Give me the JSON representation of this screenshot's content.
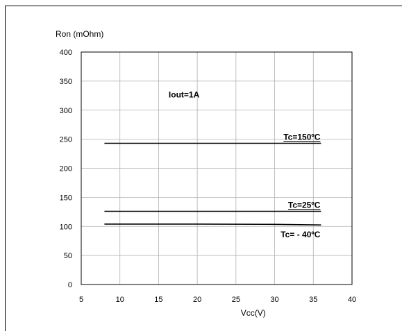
{
  "chart_data": {
    "type": "line",
    "title": "",
    "xlabel": "Vcc(V)",
    "ylabel": "Ron (mOhm)",
    "xlim": [
      5,
      40
    ],
    "ylim": [
      0,
      400
    ],
    "x_ticks": [
      5,
      10,
      15,
      20,
      25,
      30,
      35,
      40
    ],
    "y_ticks": [
      0,
      50,
      100,
      150,
      200,
      250,
      300,
      350,
      400
    ],
    "grid": true,
    "legend": "none",
    "annotations": [
      {
        "text": "Iout=1A",
        "x": 16.3,
        "y": 322
      }
    ],
    "series": [
      {
        "label": "Tc=150ºC",
        "color": "#000000",
        "points": [
          [
            8,
            243
          ],
          [
            36,
            243
          ]
        ]
      },
      {
        "label": "Tc=25ºC",
        "color": "#000000",
        "points": [
          [
            8,
            126
          ],
          [
            36,
            126
          ]
        ]
      },
      {
        "label": "Tc= - 40ºC",
        "color": "#000000",
        "points": [
          [
            8,
            104
          ],
          [
            20,
            104
          ],
          [
            30,
            103.5
          ],
          [
            36,
            102.5
          ]
        ]
      }
    ]
  }
}
